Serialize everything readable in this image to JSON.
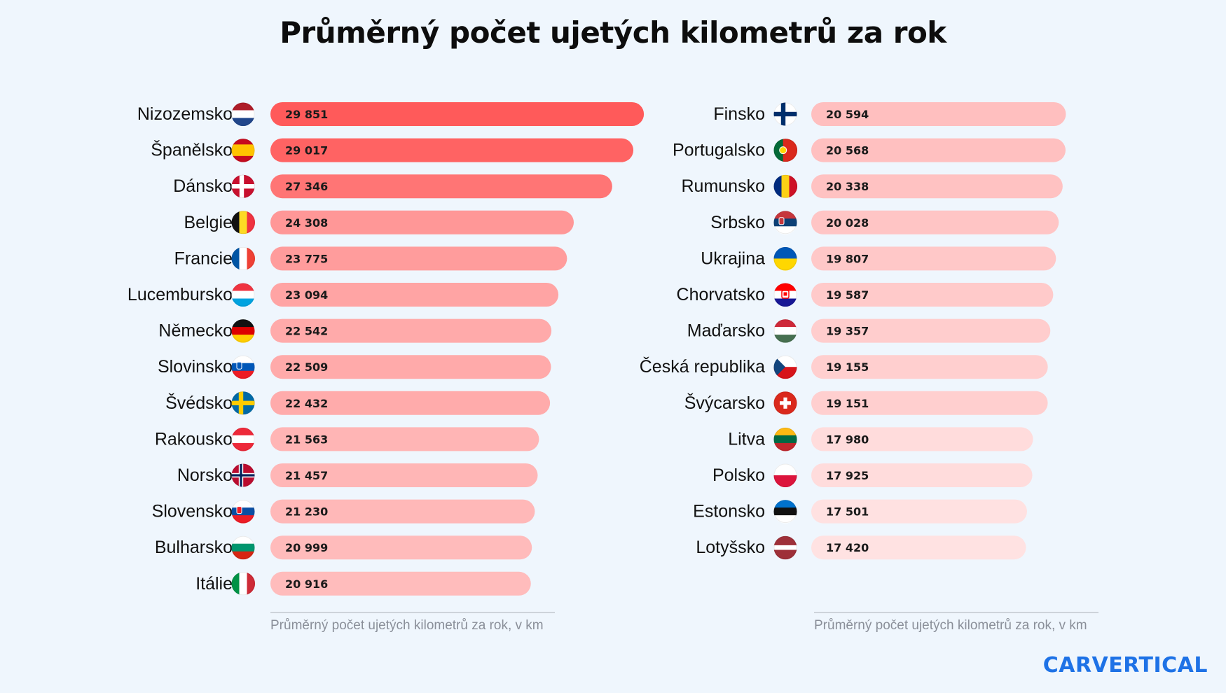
{
  "title": "Průměrný počet ujetých kilometrů za rok",
  "brand": "CARVERTICAL",
  "colors": {
    "background": "#eff6fd",
    "bar_strong": "#ff5a5a",
    "bar_light": "#ffe2e2",
    "brand": "#1e72e6"
  },
  "chart_data": [
    {
      "type": "bar",
      "orientation": "horizontal",
      "caption": "Průměrný počet ujetých kilometrů za rok, v km",
      "categories": [
        "Nizozemsko",
        "Španělsko",
        "Dánsko",
        "Belgie",
        "Francie",
        "Lucembursko",
        "Německo",
        "Slovinsko",
        "Švédsko",
        "Rakousko",
        "Norsko",
        "Slovensko",
        "Bulharsko",
        "Itálie"
      ],
      "values": [
        29851,
        29017,
        27346,
        24308,
        23775,
        23094,
        22542,
        22509,
        22432,
        21563,
        21457,
        21230,
        20999,
        20916
      ],
      "value_labels": [
        "29 851",
        "29 017",
        "27 346",
        "24 308",
        "23 775",
        "23 094",
        "22 542",
        "22 509",
        "22 432",
        "21 563",
        "21 457",
        "21 230",
        "20 999",
        "20 916"
      ],
      "flags": [
        "flag-netherlands-icon",
        "flag-spain-icon",
        "flag-denmark-icon",
        "flag-belgium-icon",
        "flag-france-icon",
        "flag-luxembourg-icon",
        "flag-germany-icon",
        "flag-slovenia-icon",
        "flag-sweden-icon",
        "flag-austria-icon",
        "flag-norway-icon",
        "flag-slovakia-icon",
        "flag-bulgaria-icon",
        "flag-italy-icon"
      ]
    },
    {
      "type": "bar",
      "orientation": "horizontal",
      "caption": "Průměrný počet ujetých kilometrů za rok, v km",
      "categories": [
        "Finsko",
        "Portugalsko",
        "Rumunsko",
        "Srbsko",
        "Ukrajina",
        "Chorvatsko",
        "Maďarsko",
        "Česká republika",
        "Švýcarsko",
        "Litva",
        "Polsko",
        "Estonsko",
        "Lotyšsko"
      ],
      "values": [
        20594,
        20568,
        20338,
        20028,
        19807,
        19587,
        19357,
        19155,
        19151,
        17980,
        17925,
        17501,
        17420
      ],
      "value_labels": [
        "20 594",
        "20 568",
        "20 338",
        "20 028",
        "19 807",
        "19 587",
        "19 357",
        "19 155",
        "19 151",
        "17 980",
        "17 925",
        "17 501",
        "17 420"
      ],
      "flags": [
        "flag-finland-icon",
        "flag-portugal-icon",
        "flag-romania-icon",
        "flag-serbia-icon",
        "flag-ukraine-icon",
        "flag-croatia-icon",
        "flag-hungary-icon",
        "flag-czechia-icon",
        "flag-switzerland-icon",
        "flag-lithuania-icon",
        "flag-poland-icon",
        "flag-estonia-icon",
        "flag-latvia-icon"
      ]
    }
  ]
}
